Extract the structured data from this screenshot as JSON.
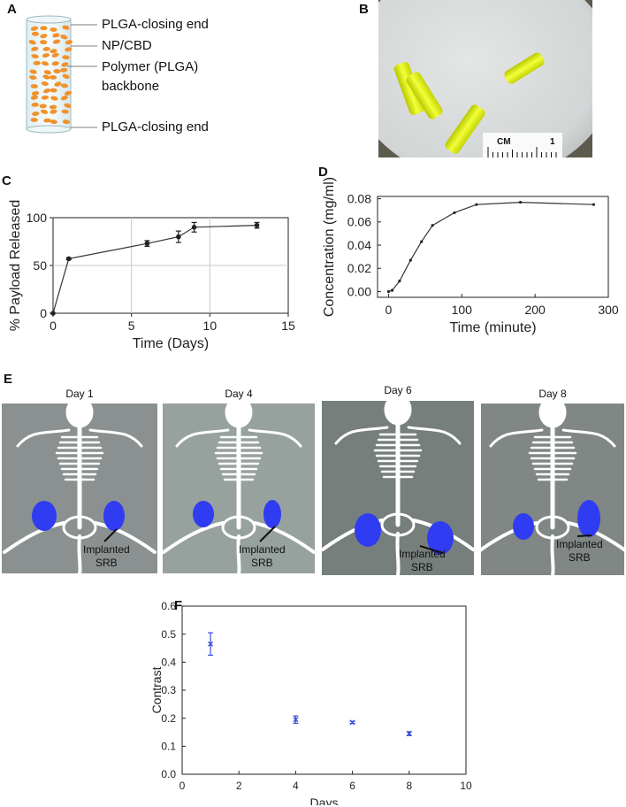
{
  "panels": {
    "A": {
      "letter": "A",
      "labels": [
        "PLGA-closing end",
        "NP/CBD",
        "Polymer (PLGA)",
        "backbone",
        "PLGA-closing end"
      ]
    },
    "B": {
      "letter": "B",
      "ruler_label": "CM",
      "ruler_tick": "1"
    },
    "C": {
      "letter": "C"
    },
    "D": {
      "letter": "D"
    },
    "E": {
      "letter": "E",
      "days": [
        "Day 1",
        "Day 4",
        "Day 6",
        "Day 8"
      ],
      "implant_label": [
        "Implanted",
        "SRB"
      ]
    },
    "F": {
      "letter": "F"
    }
  },
  "chart_data": [
    {
      "panel": "C",
      "type": "line",
      "xlabel": "Time (Days)",
      "ylabel": "% Payload Released",
      "xlim": [
        0,
        15
      ],
      "ylim": [
        0,
        100
      ],
      "xticks": [
        0,
        5,
        10,
        15
      ],
      "yticks": [
        0,
        50,
        100
      ],
      "grid": true,
      "x": [
        0,
        1,
        6,
        8,
        9,
        13
      ],
      "y": [
        0,
        57,
        73,
        80,
        90,
        92
      ],
      "yerr": [
        0,
        1,
        3,
        6,
        5,
        3
      ]
    },
    {
      "panel": "D",
      "type": "line",
      "xlabel": "Time (minute)",
      "ylabel": "Concentration (mg/ml)",
      "xlim": [
        -15,
        300
      ],
      "ylim": [
        -0.005,
        0.082
      ],
      "xticks": [
        0,
        100,
        200,
        300
      ],
      "yticks": [
        "0.00",
        "0.02",
        "0.04",
        "0.06",
        "0.08"
      ],
      "grid": false,
      "x": [
        0,
        5,
        15,
        30,
        45,
        60,
        90,
        120,
        180,
        280
      ],
      "y": [
        0.0,
        0.001,
        0.009,
        0.027,
        0.043,
        0.057,
        0.068,
        0.075,
        0.077,
        0.075
      ]
    },
    {
      "panel": "F",
      "type": "scatter",
      "xlabel": "Days",
      "ylabel": "Contrast",
      "xlim": [
        0,
        10
      ],
      "ylim": [
        0,
        0.6
      ],
      "xticks": [
        0,
        2,
        4,
        6,
        8,
        10
      ],
      "yticks": [
        "0.0",
        "0.1",
        "0.2",
        "0.3",
        "0.4",
        "0.5",
        "0.6"
      ],
      "grid": false,
      "color": "#3a4fd6",
      "x": [
        1,
        4,
        6,
        8
      ],
      "y": [
        0.465,
        0.195,
        0.185,
        0.145
      ],
      "yerr": [
        0.04,
        0.013,
        0.004,
        0.007
      ]
    }
  ]
}
